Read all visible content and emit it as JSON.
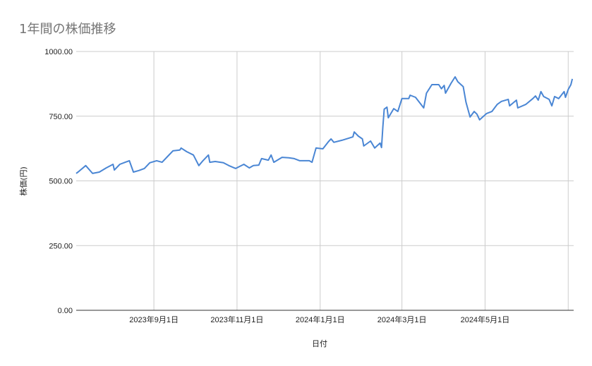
{
  "chart_data": {
    "type": "line",
    "title": "1年間の株価推移",
    "xlabel": "日付",
    "ylabel": "株価(円)",
    "ylim": [
      0,
      1000
    ],
    "yticks": [
      "0.00",
      "250.00",
      "500.00",
      "750.00",
      "1000.00"
    ],
    "xlim": [
      "2023-07-06",
      "2024-07-05"
    ],
    "xticks": [
      {
        "date": "2023-09-01",
        "label": "2023年9月1日"
      },
      {
        "date": "2023-11-01",
        "label": "2023年11月1日"
      },
      {
        "date": "2024-01-01",
        "label": "2024年1月1日"
      },
      {
        "date": "2024-03-01",
        "label": "2024年3月1日"
      },
      {
        "date": "2024-05-01",
        "label": "2024年5月1日"
      },
      {
        "date": "2024-07-01",
        "label": ""
      }
    ],
    "grid": true,
    "line_color": "#4a86d4",
    "series": [
      {
        "x": [
          "2023-07-06",
          "2023-07-08",
          "2023-07-13",
          "2023-07-18",
          "2023-07-23",
          "2023-07-28",
          "2023-08-02",
          "2023-08-03",
          "2023-08-07",
          "2023-08-11",
          "2023-08-14",
          "2023-08-17",
          "2023-08-21",
          "2023-08-25",
          "2023-08-29",
          "2023-09-03",
          "2023-09-07",
          "2023-09-11",
          "2023-09-15",
          "2023-09-20",
          "2023-09-21",
          "2023-09-25",
          "2023-09-30",
          "2023-10-04",
          "2023-10-07",
          "2023-10-11",
          "2023-10-12",
          "2023-10-16",
          "2023-10-22",
          "2023-10-26",
          "2023-10-31",
          "2023-11-06",
          "2023-11-10",
          "2023-11-13",
          "2023-11-17",
          "2023-11-19",
          "2023-11-24",
          "2023-11-26",
          "2023-11-28",
          "2023-12-04",
          "2023-12-09",
          "2023-12-13",
          "2023-12-17",
          "2023-12-24",
          "2023-12-26",
          "2023-12-29",
          "2024-01-03",
          "2024-01-07",
          "2024-01-09",
          "2024-01-11",
          "2024-01-17",
          "2024-01-22",
          "2024-01-25",
          "2024-01-26",
          "2024-01-29",
          "2024-02-01",
          "2024-02-02",
          "2024-02-07",
          "2024-02-10",
          "2024-02-14",
          "2024-02-15",
          "2024-02-16",
          "2024-02-17",
          "2024-02-19",
          "2024-02-20",
          "2024-02-24",
          "2024-02-27",
          "2024-03-01",
          "2024-03-06",
          "2024-03-07",
          "2024-03-11",
          "2024-03-17",
          "2024-03-19",
          "2024-03-23",
          "2024-03-28",
          "2024-03-30",
          "2024-04-01",
          "2024-04-02",
          "2024-04-06",
          "2024-04-09",
          "2024-04-11",
          "2024-04-15",
          "2024-04-17",
          "2024-04-20",
          "2024-04-23",
          "2024-04-25",
          "2024-04-27",
          "2024-05-02",
          "2024-05-06",
          "2024-05-10",
          "2024-05-13",
          "2024-05-18",
          "2024-05-19",
          "2024-05-24",
          "2024-05-25",
          "2024-05-31",
          "2024-06-05",
          "2024-06-07",
          "2024-06-09",
          "2024-06-11",
          "2024-06-13",
          "2024-06-17",
          "2024-06-19",
          "2024-06-21",
          "2024-06-24",
          "2024-06-28",
          "2024-06-29",
          "2024-07-01",
          "2024-07-03",
          "2024-07-04"
        ],
        "y": [
          529,
          537,
          559,
          529,
          534,
          550,
          564,
          542,
          564,
          572,
          578,
          534,
          540,
          548,
          570,
          578,
          572,
          594,
          616,
          619,
          627,
          613,
          600,
          559,
          578,
          600,
          572,
          575,
          570,
          559,
          548,
          564,
          550,
          559,
          561,
          586,
          580,
          600,
          572,
          591,
          589,
          586,
          578,
          578,
          572,
          627,
          624,
          651,
          662,
          649,
          657,
          665,
          670,
          689,
          673,
          662,
          635,
          654,
          627,
          646,
          629,
          709,
          777,
          785,
          744,
          779,
          768,
          818,
          818,
          831,
          823,
          782,
          839,
          872,
          872,
          856,
          869,
          839,
          877,
          902,
          883,
          864,
          804,
          747,
          768,
          758,
          736,
          760,
          768,
          796,
          807,
          815,
          790,
          812,
          782,
          796,
          818,
          828,
          812,
          845,
          826,
          815,
          790,
          826,
          818,
          845,
          823,
          853,
          872,
          894
        ]
      }
    ]
  }
}
